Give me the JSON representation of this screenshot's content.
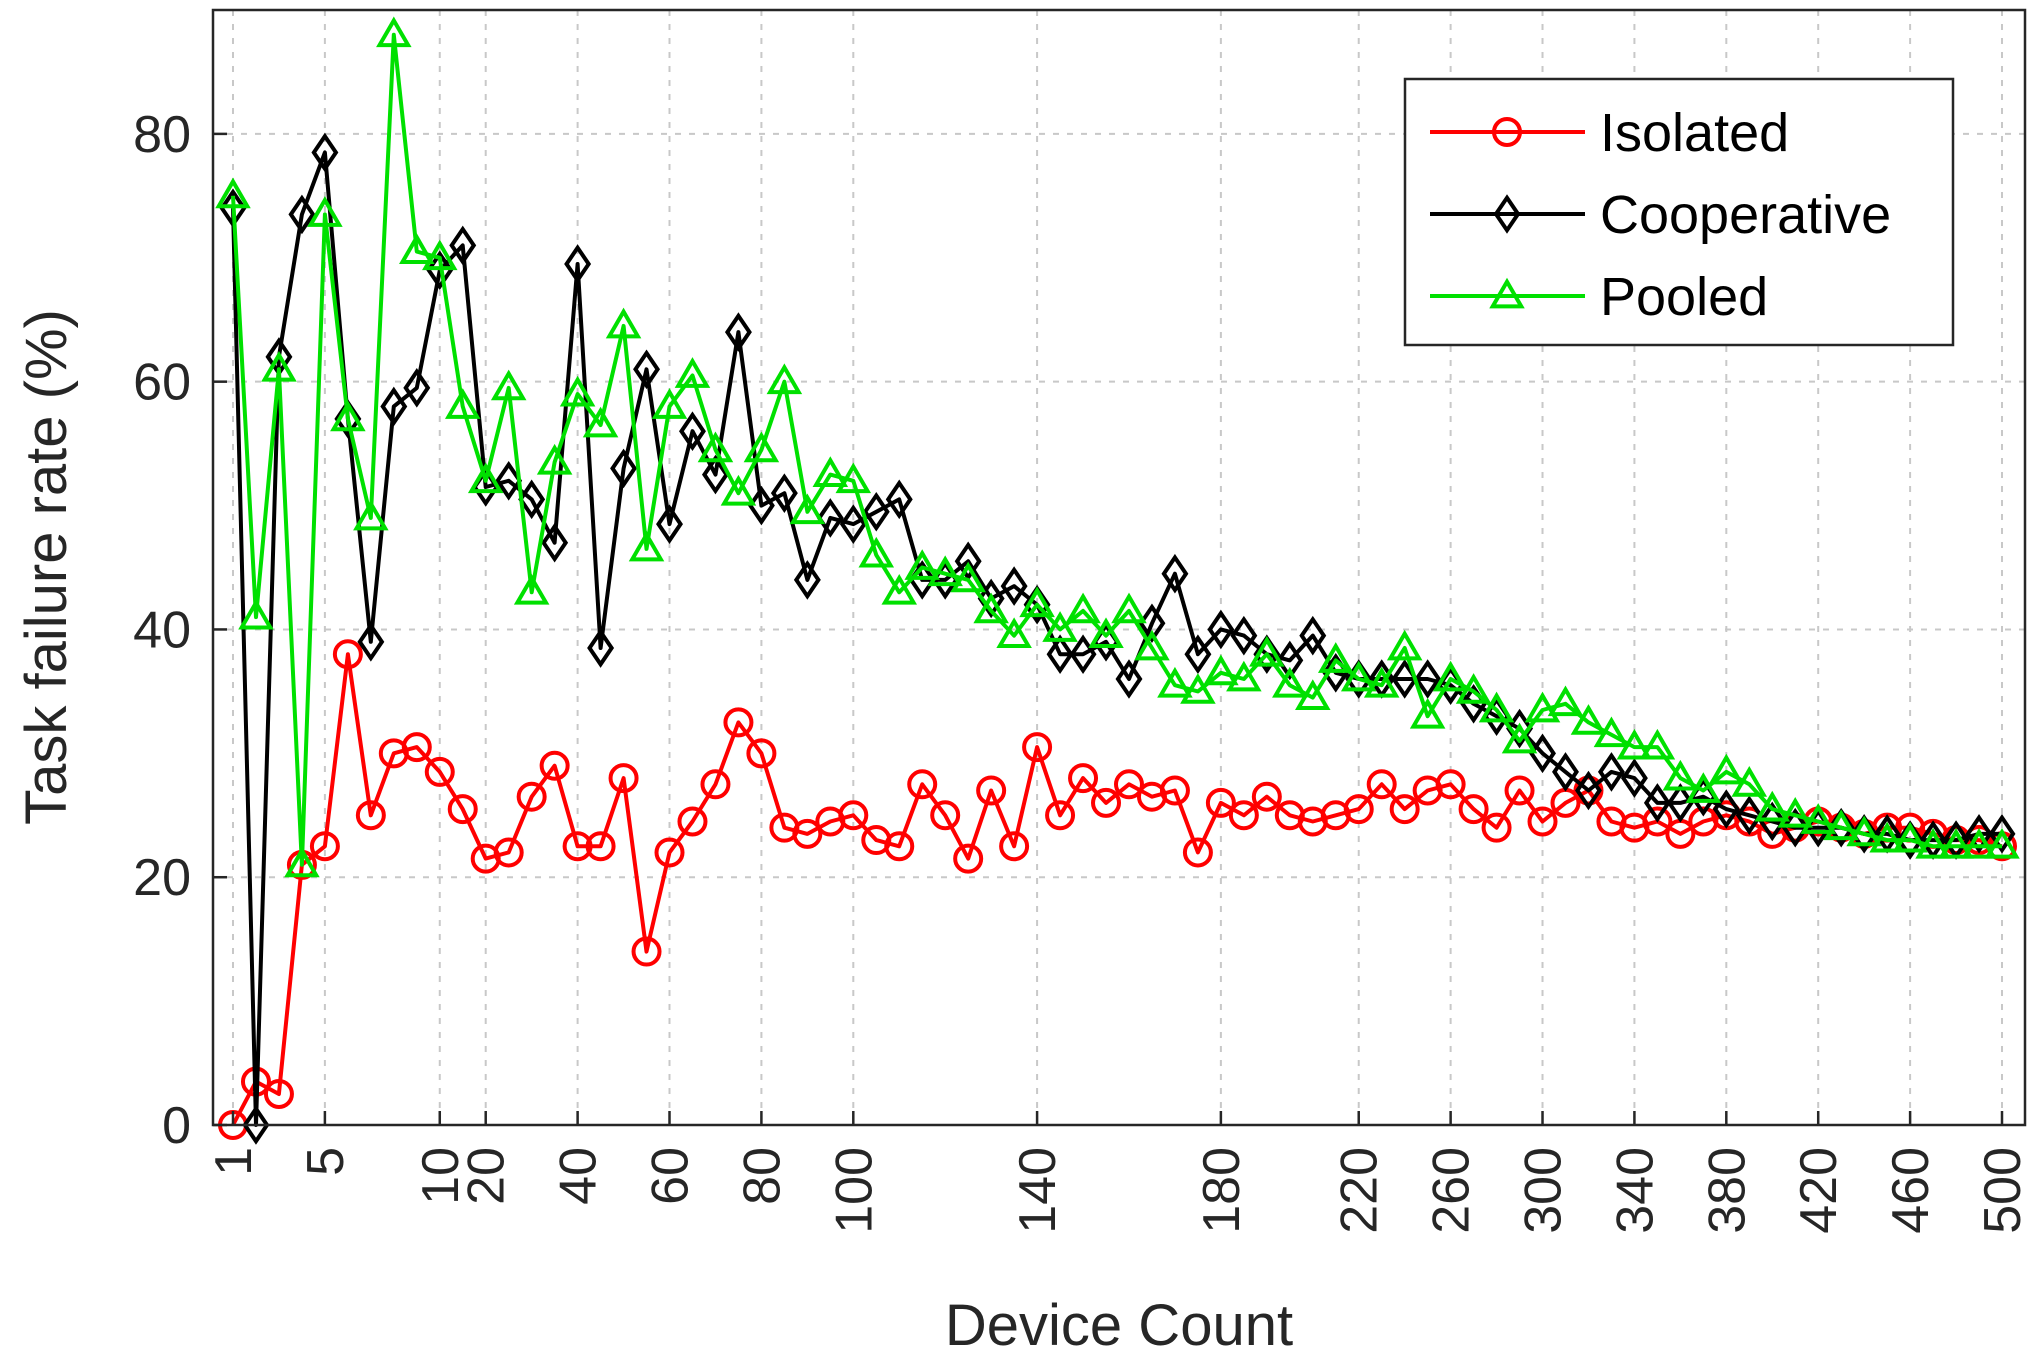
{
  "chart_data": {
    "type": "line",
    "title": "",
    "xlabel": "Device Count",
    "ylabel": "Task failure rate (%)",
    "ylim": [
      0,
      90
    ],
    "yticks": [
      0,
      20,
      40,
      60,
      80
    ],
    "grid": true,
    "legend_position": "top-right",
    "x_scale": "categorical",
    "xtick_labels": [
      "1",
      "5",
      "10",
      "20",
      "40",
      "60",
      "80",
      "100",
      "140",
      "180",
      "220",
      "260",
      "300",
      "340",
      "380",
      "420",
      "460",
      "500"
    ],
    "x": [
      1,
      2,
      3,
      4,
      5,
      6,
      7,
      8,
      9,
      10,
      15,
      20,
      25,
      30,
      35,
      40,
      45,
      50,
      55,
      60,
      65,
      70,
      75,
      80,
      85,
      90,
      95,
      100,
      105,
      110,
      115,
      120,
      125,
      130,
      135,
      140,
      145,
      150,
      155,
      160,
      165,
      170,
      175,
      180,
      185,
      190,
      195,
      200,
      210,
      220,
      230,
      240,
      250,
      260,
      270,
      280,
      290,
      300,
      310,
      320,
      330,
      340,
      350,
      360,
      370,
      380,
      390,
      400,
      410,
      420,
      430,
      440,
      450,
      460,
      470,
      480,
      490,
      500
    ],
    "series": [
      {
        "name": "Isolated",
        "color": "#ff0000",
        "marker": "circle",
        "values": [
          0,
          3.5,
          2.5,
          21,
          22.5,
          38,
          25,
          30,
          30.5,
          28.5,
          25.5,
          21.5,
          22,
          26.5,
          29,
          22.5,
          22.5,
          28,
          14,
          22,
          24.5,
          27.5,
          32.5,
          30,
          24,
          23.5,
          24.5,
          25,
          23,
          22.5,
          27.5,
          25,
          21.5,
          27,
          22.5,
          30.5,
          25,
          28,
          26,
          27.5,
          26.5,
          27,
          22,
          26,
          25,
          26.5,
          25,
          24.5,
          25,
          25.5,
          27.5,
          25.5,
          27,
          27.5,
          25.5,
          24,
          27,
          24.5,
          26,
          27,
          24.5,
          24,
          24.5,
          23.5,
          24.5,
          25,
          24.5,
          23.5,
          24,
          24.5,
          24,
          23.5,
          24,
          24,
          23.5,
          23,
          23,
          22.5
        ]
      },
      {
        "name": "Cooperative",
        "color": "#000000",
        "marker": "diamond",
        "values": [
          74,
          0,
          62,
          73.5,
          78.5,
          57,
          39,
          58,
          59.5,
          69,
          71,
          51.5,
          52,
          50.5,
          47,
          69.5,
          38.5,
          53,
          61,
          48.5,
          56,
          52.5,
          64,
          50,
          51,
          44,
          49,
          48.5,
          49.5,
          50.5,
          44,
          44,
          45.5,
          42.5,
          43.5,
          42,
          38,
          38,
          39,
          36,
          40.5,
          44.5,
          38,
          40,
          39.5,
          38,
          37.5,
          39.5,
          36.5,
          36,
          36,
          36,
          36,
          35.5,
          34,
          33,
          32,
          30,
          28.5,
          27,
          28.5,
          28,
          26,
          26,
          26.5,
          25.5,
          25,
          24.5,
          24,
          24,
          24,
          23.5,
          23.5,
          23,
          23,
          23,
          23.5,
          23.5
        ]
      },
      {
        "name": "Pooled",
        "color": "#00e000",
        "marker": "triangle",
        "values": [
          75,
          41,
          61,
          21,
          73.5,
          57,
          49,
          88,
          70.5,
          70,
          58,
          52,
          59.5,
          43,
          53.5,
          59,
          56.5,
          64.5,
          46.5,
          58,
          60.5,
          54.5,
          51,
          54.5,
          60,
          49.5,
          52.5,
          52,
          46,
          43,
          45,
          44.5,
          44,
          41.5,
          39.5,
          42,
          40,
          41.5,
          39.5,
          41.5,
          38.5,
          35.5,
          35,
          36.5,
          36,
          38,
          35.5,
          34.5,
          37.5,
          36,
          35.5,
          38.5,
          33,
          36,
          35,
          33.5,
          31,
          33.5,
          34,
          32.5,
          31.5,
          30.5,
          30.5,
          28,
          27,
          28.5,
          27.5,
          25.5,
          25,
          24.5,
          24,
          23.5,
          23,
          23,
          22.5,
          22.5,
          22.5,
          22.5
        ]
      }
    ]
  }
}
